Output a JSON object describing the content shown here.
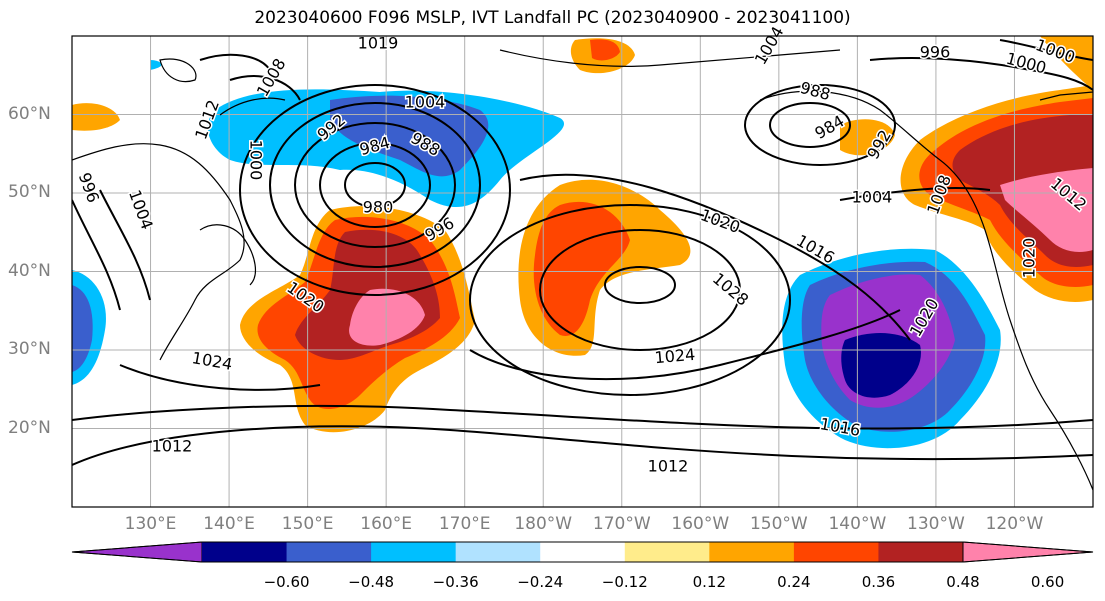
{
  "title": "2023040600 F096 MSLP, IVT Landfall PC (2023040900 - 2023041100)",
  "map": {
    "lat_labels": [
      {
        "text": "60°N",
        "lat": 60
      },
      {
        "text": "50°N",
        "lat": 50
      },
      {
        "text": "40°N",
        "lat": 40
      },
      {
        "text": "30°N",
        "lat": 30
      },
      {
        "text": "20°N",
        "lat": 20
      }
    ],
    "lon_labels": [
      {
        "text": "130°E",
        "lon": 130
      },
      {
        "text": "140°E",
        "lon": 140
      },
      {
        "text": "150°E",
        "lon": 150
      },
      {
        "text": "160°E",
        "lon": 160
      },
      {
        "text": "170°E",
        "lon": 170
      },
      {
        "text": "180°W",
        "lon": 180
      },
      {
        "text": "170°W",
        "lon": 190
      },
      {
        "text": "160°W",
        "lon": 200
      },
      {
        "text": "150°W",
        "lon": 210
      },
      {
        "text": "140°W",
        "lon": 220
      },
      {
        "text": "130°W",
        "lon": 230
      },
      {
        "text": "120°W",
        "lon": 240
      }
    ],
    "extent": {
      "lon_min": 120,
      "lon_max": 250,
      "lat_min": 10,
      "lat_max": 70
    },
    "isobar_labels": [
      "1019",
      "1004",
      "1008",
      "1012",
      "992",
      "984",
      "988",
      "980",
      "996",
      "1000",
      "1004",
      "1020",
      "1024",
      "1012",
      "1028",
      "1020",
      "1016",
      "1024",
      "1016",
      "1012",
      "996",
      "1000",
      "1004",
      "988",
      "984",
      "992",
      "1004",
      "1008",
      "1012",
      "1020",
      "1020",
      "996",
      "1000"
    ]
  },
  "colorbar": {
    "colors": [
      "#9932cc",
      "#00008b",
      "#3a5fcd",
      "#00bfff",
      "#b0e2ff",
      "#ffffff",
      "#ffec8b",
      "#ffa500",
      "#ff4500",
      "#b22222",
      "#ff82ab"
    ],
    "tick_labels": [
      "−0.60",
      "−0.48",
      "−0.36",
      "−0.24",
      "−0.12",
      "0.12",
      "0.24",
      "0.36",
      "0.48",
      "0.60"
    ]
  }
}
